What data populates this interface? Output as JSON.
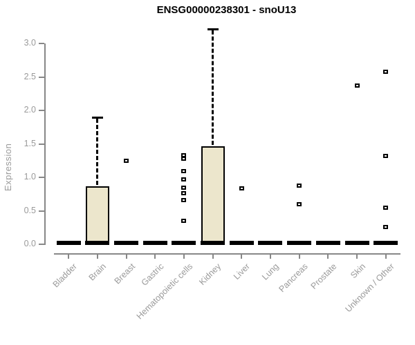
{
  "chart_data": {
    "type": "boxplot",
    "title": "ENSG00000238301 - snoU13",
    "xlabel": "",
    "ylabel": "Expression",
    "ylim": [
      0,
      3.3
    ],
    "grid": false,
    "legend": false,
    "ytick_labels": [
      "0.0",
      "0.5",
      "1.0",
      "1.5",
      "2.0",
      "2.5",
      "3.0"
    ],
    "ytick_values": [
      0.0,
      0.5,
      1.0,
      1.5,
      2.0,
      2.5,
      3.0
    ],
    "categories": [
      "Bladder",
      "Brain",
      "Breast",
      "Gastric",
      "Hematopoietic cells",
      "Kidney",
      "Liver",
      "Lung",
      "Pancreas",
      "Prostate",
      "Skin",
      "Unknown / Other"
    ],
    "boxes": [
      {
        "category": "Bladder",
        "whisker_low": 0,
        "q1": 0,
        "median": 0,
        "q3": 0,
        "whisker_high": 0,
        "outliers": []
      },
      {
        "category": "Brain",
        "whisker_low": 0,
        "q1": 0,
        "median": 0,
        "q3": 0.87,
        "whisker_high": 1.9,
        "outliers": []
      },
      {
        "category": "Breast",
        "whisker_low": 0,
        "q1": 0,
        "median": 0,
        "q3": 0,
        "whisker_high": 0,
        "outliers": [
          1.25
        ]
      },
      {
        "category": "Gastric",
        "whisker_low": 0,
        "q1": 0,
        "median": 0,
        "q3": 0,
        "whisker_high": 0,
        "outliers": []
      },
      {
        "category": "Hematopoietic cells",
        "whisker_low": 0,
        "q1": 0,
        "median": 0,
        "q3": 0,
        "whisker_high": 0,
        "outliers": [
          1.33,
          1.28,
          1.09,
          0.97,
          0.85,
          0.76,
          0.66,
          0.35
        ]
      },
      {
        "category": "Kidney",
        "whisker_low": 0,
        "q1": 0,
        "median": 0,
        "q3": 1.46,
        "whisker_high": 3.22,
        "outliers": []
      },
      {
        "category": "Liver",
        "whisker_low": 0,
        "q1": 0,
        "median": 0,
        "q3": 0,
        "whisker_high": 0,
        "outliers": [
          0.83
        ]
      },
      {
        "category": "Lung",
        "whisker_low": 0,
        "q1": 0,
        "median": 0,
        "q3": 0,
        "whisker_high": 0,
        "outliers": []
      },
      {
        "category": "Pancreas",
        "whisker_low": 0,
        "q1": 0,
        "median": 0,
        "q3": 0,
        "whisker_high": 0,
        "outliers": [
          0.88,
          0.6
        ]
      },
      {
        "category": "Prostate",
        "whisker_low": 0,
        "q1": 0,
        "median": 0,
        "q3": 0,
        "whisker_high": 0,
        "outliers": []
      },
      {
        "category": "Skin",
        "whisker_low": 0,
        "q1": 0,
        "median": 0,
        "q3": 0,
        "whisker_high": 0,
        "outliers": [
          2.37
        ]
      },
      {
        "category": "Unknown / Other",
        "whisker_low": 0,
        "q1": 0,
        "median": 0,
        "q3": 0,
        "whisker_high": 0,
        "outliers": [
          2.58,
          1.32,
          0.55,
          0.26
        ]
      }
    ],
    "colors": {
      "box_fill": "#ece6cc",
      "box_border": "#000000",
      "median": "#000000",
      "whisker": "#000000",
      "outlier": "#000000",
      "axis": "#878787",
      "axis_text": "#9a9a9a",
      "title_text": "#000000",
      "background": "#ffffff"
    }
  }
}
